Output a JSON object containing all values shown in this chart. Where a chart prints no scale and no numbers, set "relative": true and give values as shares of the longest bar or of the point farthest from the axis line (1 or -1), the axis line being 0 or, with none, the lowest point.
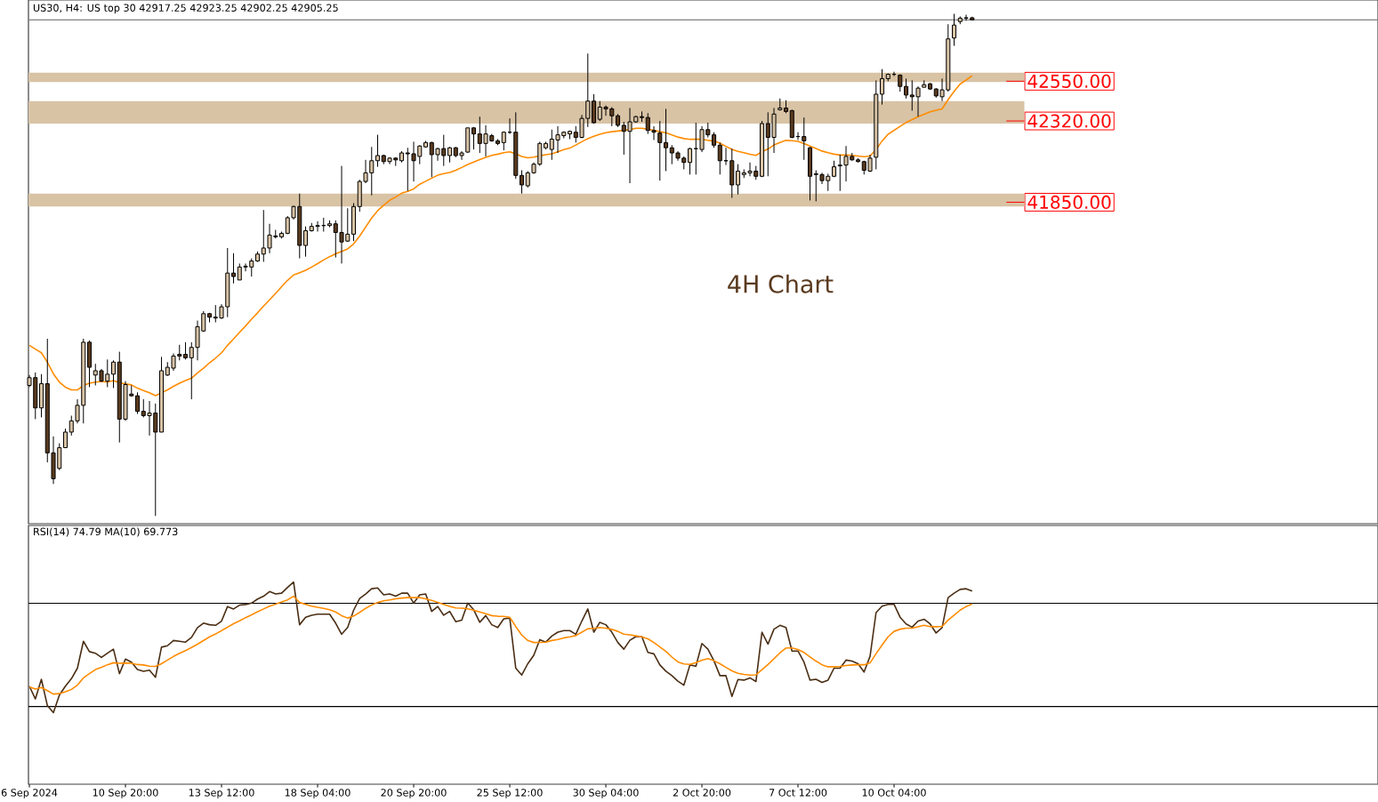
{
  "chart_data": [
    {
      "type": "candlestick",
      "title": "US30, H4: US top 30 42917.25 42923.25 42902.25 42905.25",
      "annotations": [
        "4H Chart"
      ],
      "tick_labels": "y",
      "yticks": [
        {
          "value": 42550,
          "label": "42550.00"
        },
        {
          "value": 42320,
          "label": "42320.00"
        },
        {
          "value": 41850,
          "label": "41850.00"
        }
      ],
      "ylim": [
        39990,
        43020
      ],
      "ohlc": [
        [
          40790,
          40850,
          40780,
          40835
        ],
        [
          40835,
          40865,
          40595,
          40660
        ],
        [
          40660,
          40855,
          40605,
          40800
        ],
        [
          40800,
          41060,
          40345,
          40400
        ],
        [
          40400,
          40495,
          40220,
          40250
        ],
        [
          40310,
          40455,
          40300,
          40430
        ],
        [
          40430,
          40540,
          40430,
          40520
        ],
        [
          40520,
          40615,
          40500,
          40585
        ],
        [
          40585,
          40710,
          40570,
          40675
        ],
        [
          40675,
          41060,
          40570,
          41040
        ],
        [
          41040,
          41050,
          40780,
          40895
        ],
        [
          40850,
          40915,
          40790,
          40875
        ],
        [
          40875,
          40885,
          40810,
          40815
        ],
        [
          40815,
          40940,
          40780,
          40855
        ],
        [
          40855,
          40935,
          40775,
          40925
        ],
        [
          40925,
          40985,
          40460,
          40595
        ],
        [
          40595,
          40815,
          40585,
          40795
        ],
        [
          40740,
          40790,
          40725,
          40730
        ],
        [
          40730,
          40750,
          40625,
          40640
        ],
        [
          40640,
          40710,
          40605,
          40615
        ],
        [
          40615,
          40700,
          40500,
          40630
        ],
        [
          40630,
          40685,
          40035,
          40520
        ],
        [
          40520,
          40955,
          40520,
          40875
        ],
        [
          40850,
          40925,
          40845,
          40895
        ],
        [
          40890,
          40975,
          40875,
          40960
        ],
        [
          40970,
          41025,
          40935,
          40960
        ],
        [
          40970,
          41040,
          40940,
          40950
        ],
        [
          40950,
          41040,
          40710,
          41010
        ],
        [
          41010,
          41165,
          40935,
          41130
        ],
        [
          41105,
          41220,
          41100,
          41205
        ],
        [
          41205,
          41210,
          41155,
          41185
        ],
        [
          41185,
          41255,
          41155,
          41180
        ],
        [
          41180,
          41260,
          41175,
          41245
        ],
        [
          41245,
          41585,
          41185,
          41440
        ],
        [
          41440,
          41555,
          41380,
          41420
        ],
        [
          41400,
          41495,
          41400,
          41475
        ],
        [
          41475,
          41495,
          41450,
          41480
        ],
        [
          41475,
          41525,
          41420,
          41510
        ],
        [
          41510,
          41565,
          41505,
          41550
        ],
        [
          41550,
          41805,
          41505,
          41585
        ],
        [
          41585,
          41725,
          41555,
          41660
        ],
        [
          41655,
          41690,
          41640,
          41650
        ],
        [
          41650,
          41680,
          41640,
          41670
        ],
        [
          41670,
          41770,
          41665,
          41760
        ],
        [
          41760,
          41830,
          41750,
          41825
        ],
        [
          41825,
          41900,
          41525,
          41600
        ],
        [
          41600,
          41710,
          41535,
          41685
        ],
        [
          41685,
          41730,
          41680,
          41710
        ],
        [
          41710,
          41740,
          41680,
          41715
        ],
        [
          41715,
          41760,
          41680,
          41715
        ],
        [
          41715,
          41745,
          41705,
          41725
        ],
        [
          41725,
          41745,
          41530,
          41675
        ],
        [
          41675,
          42060,
          41495,
          41620
        ],
        [
          41625,
          41815,
          41620,
          41665
        ],
        [
          41665,
          41845,
          41625,
          41825
        ],
        [
          41825,
          41980,
          41795,
          41970
        ],
        [
          41970,
          42095,
          41960,
          42020
        ],
        [
          42020,
          42170,
          41890,
          42090
        ],
        [
          42090,
          42240,
          42055,
          42120
        ],
        [
          42120,
          42125,
          42070,
          42085
        ],
        [
          42085,
          42110,
          42070,
          42105
        ],
        [
          42105,
          42110,
          42060,
          42095
        ],
        [
          42090,
          42145,
          42080,
          42135
        ],
        [
          42135,
          42165,
          41915,
          42130
        ],
        [
          42130,
          42200,
          41970,
          42090
        ],
        [
          42115,
          42180,
          42070,
          42175
        ],
        [
          42170,
          42205,
          42165,
          42195
        ],
        [
          42195,
          42200,
          41995,
          42125
        ],
        [
          42125,
          42165,
          42090,
          42160
        ],
        [
          42160,
          42240,
          42060,
          42120
        ],
        [
          42120,
          42170,
          42080,
          42165
        ],
        [
          42165,
          42170,
          42110,
          42120
        ],
        [
          42120,
          42145,
          42095,
          42135
        ],
        [
          42140,
          42280,
          42135,
          42280
        ],
        [
          42280,
          42285,
          42155,
          42245
        ],
        [
          42245,
          42345,
          42135,
          42190
        ],
        [
          42190,
          42295,
          42115,
          42245
        ],
        [
          42235,
          42245,
          42200,
          42205
        ],
        [
          42205,
          42215,
          42180,
          42190
        ],
        [
          42195,
          42260,
          42150,
          42255
        ],
        [
          42255,
          42335,
          42245,
          42255
        ],
        [
          42255,
          42370,
          41985,
          42005
        ],
        [
          42005,
          42035,
          41900,
          41950
        ],
        [
          41945,
          42030,
          41935,
          42020
        ],
        [
          42020,
          42080,
          42015,
          42070
        ],
        [
          42070,
          42200,
          42060,
          42190
        ],
        [
          42165,
          42200,
          42155,
          42190
        ],
        [
          42155,
          42270,
          42095,
          42215
        ],
        [
          42210,
          42290,
          42135,
          42240
        ],
        [
          42235,
          42260,
          42220,
          42255
        ],
        [
          42245,
          42265,
          42215,
          42260
        ],
        [
          42255,
          42290,
          42195,
          42225
        ],
        [
          42225,
          42355,
          42220,
          42335
        ],
        [
          42335,
          42710,
          42285,
          42435
        ],
        [
          42435,
          42475,
          42305,
          42310
        ],
        [
          42330,
          42435,
          42320,
          42400
        ],
        [
          42400,
          42410,
          42350,
          42390
        ],
        [
          42390,
          42400,
          42290,
          42350
        ],
        [
          42350,
          42360,
          42285,
          42295
        ],
        [
          42295,
          42315,
          42125,
          42260
        ],
        [
          42260,
          42395,
          41960,
          42315
        ],
        [
          42315,
          42350,
          42310,
          42345
        ],
        [
          42345,
          42375,
          42315,
          42340
        ],
        [
          42340,
          42365,
          42245,
          42265
        ],
        [
          42265,
          42290,
          42210,
          42255
        ],
        [
          42250,
          42320,
          41975,
          42195
        ],
        [
          42195,
          42390,
          42030,
          42165
        ],
        [
          42165,
          42180,
          42070,
          42135
        ],
        [
          42135,
          42145,
          42090,
          42105
        ],
        [
          42105,
          42115,
          42040,
          42080
        ],
        [
          42080,
          42165,
          42010,
          42160
        ],
        [
          42160,
          42310,
          42010,
          42160
        ],
        [
          42155,
          42290,
          42140,
          42270
        ],
        [
          42270,
          42310,
          42225,
          42240
        ],
        [
          42240,
          42255,
          42165,
          42180
        ],
        [
          42180,
          42195,
          42010,
          42090
        ],
        [
          42090,
          42165,
          42065,
          42090
        ],
        [
          42090,
          42160,
          41875,
          41950
        ],
        [
          41950,
          42070,
          41895,
          42030
        ],
        [
          42010,
          42040,
          41990,
          42020
        ],
        [
          42020,
          42080,
          42000,
          42030
        ],
        [
          42030,
          42060,
          41980,
          42000
        ],
        [
          42000,
          42320,
          41995,
          42305
        ],
        [
          42305,
          42370,
          42000,
          42225
        ],
        [
          42225,
          42395,
          42135,
          42360
        ],
        [
          42385,
          42450,
          42380,
          42395
        ],
        [
          42395,
          42440,
          42365,
          42375
        ],
        [
          42380,
          42385,
          42220,
          42225
        ],
        [
          42230,
          42255,
          42210,
          42230
        ],
        [
          42230,
          42340,
          42095,
          42205
        ],
        [
          42165,
          42170,
          41860,
          42000
        ],
        [
          42010,
          42035,
          41855,
          42015
        ],
        [
          42010,
          42020,
          41955,
          41975
        ],
        [
          41975,
          42015,
          41915,
          42000
        ],
        [
          42000,
          42090,
          41995,
          42055
        ],
        [
          42060,
          42125,
          41915,
          42065
        ],
        [
          42065,
          42175,
          41970,
          42115
        ],
        [
          42115,
          42135,
          42090,
          42095
        ],
        [
          42095,
          42105,
          42080,
          42085
        ],
        [
          42085,
          42090,
          42010,
          42035
        ],
        [
          42030,
          42125,
          42025,
          42105
        ],
        [
          42110,
          42555,
          42040,
          42475
        ],
        [
          42475,
          42620,
          42415,
          42565
        ],
        [
          42565,
          42595,
          42550,
          42590
        ],
        [
          42590,
          42605,
          42580,
          42590
        ],
        [
          42585,
          42590,
          42490,
          42520
        ],
        [
          42520,
          42565,
          42450,
          42470
        ],
        [
          42470,
          42555,
          42380,
          42460
        ],
        [
          42460,
          42520,
          42345,
          42510
        ],
        [
          42515,
          42555,
          42515,
          42530
        ],
        [
          42535,
          42540,
          42500,
          42505
        ],
        [
          42505,
          42510,
          42455,
          42465
        ],
        [
          42460,
          42565,
          42435,
          42500
        ],
        [
          42500,
          42880,
          42490,
          42795
        ],
        [
          42800,
          42940,
          42755,
          42875
        ],
        [
          42895,
          42925,
          42880,
          42915
        ],
        [
          42915,
          42935,
          42900,
          42917.25
        ],
        [
          42917.25,
          42923.25,
          42902.25,
          42905.25
        ]
      ],
      "series": [
        {
          "type": "line",
          "color": "#ff8c00",
          "values": [
            41022,
            41000,
            40979,
            40925,
            40857,
            40809,
            40780,
            40764,
            40764,
            40790,
            40803,
            40809,
            40813,
            40809,
            40818,
            40805,
            40799,
            40793,
            40774,
            40760,
            40747,
            40731,
            40747,
            40764,
            40785,
            40803,
            40818,
            40832,
            40863,
            40890,
            40921,
            40948,
            40979,
            41022,
            41059,
            41097,
            41134,
            41173,
            41210,
            41249,
            41285,
            41322,
            41361,
            41398,
            41429,
            41442,
            41456,
            41475,
            41495,
            41516,
            41535,
            41551,
            41565,
            41580,
            41609,
            41654,
            41706,
            41758,
            41801,
            41832,
            41861,
            41880,
            41902,
            41913,
            41927,
            41954,
            41971,
            41989,
            42006,
            42016,
            42022,
            42035,
            42051,
            42068,
            42082,
            42096,
            42109,
            42121,
            42128,
            42136,
            42142,
            42130,
            42115,
            42107,
            42111,
            42119,
            42125,
            42130,
            42142,
            42154,
            42163,
            42181,
            42200,
            42218,
            42231,
            42243,
            42252,
            42258,
            42262,
            42266,
            42270,
            42278,
            42278,
            42272,
            42266,
            42258,
            42252,
            42239,
            42227,
            42218,
            42214,
            42214,
            42214,
            42208,
            42204,
            42192,
            42173,
            42156,
            42144,
            42136,
            42127,
            42121,
            42142,
            42158,
            42181,
            42196,
            42208,
            42206,
            42202,
            42189,
            42175,
            42161,
            42146,
            42136,
            42128,
            42123,
            42123,
            42121,
            42117,
            42113,
            42117,
            42156,
            42204,
            42243,
            42266,
            42289,
            42311,
            42328,
            42345,
            42359,
            42373,
            42382,
            42390,
            42444,
            42491,
            42534,
            42557,
            42582
          ]
        }
      ],
      "bands": [
        {
          "axis": "y",
          "from": 42545,
          "to": 42600,
          "color": "#d8c3a5"
        },
        {
          "axis": "y",
          "from": 42305,
          "to": 42435,
          "color": "#d8c3a5"
        },
        {
          "axis": "y",
          "from": 41825,
          "to": 41900,
          "color": "#d8c3a5"
        }
      ],
      "ref_lines": [
        {
          "axis": "y",
          "value": 42905.25,
          "color": "#808080"
        }
      ]
    },
    {
      "type": "line",
      "title": "RSI(14) 74.79 MA(10) 69.773",
      "tick_labels": "x",
      "categories": [
        "6 Sep 2024",
        null,
        null,
        null,
        null,
        null,
        null,
        null,
        null,
        null,
        null,
        null,
        null,
        null,
        null,
        null,
        "10 Sep 20:00",
        null,
        null,
        null,
        null,
        null,
        null,
        null,
        null,
        null,
        null,
        null,
        null,
        null,
        null,
        null,
        "13 Sep 12:00",
        null,
        null,
        null,
        null,
        null,
        null,
        null,
        null,
        null,
        null,
        null,
        null,
        null,
        null,
        null,
        "18 Sep 04:00",
        null,
        null,
        null,
        null,
        null,
        null,
        null,
        null,
        null,
        null,
        null,
        null,
        null,
        null,
        null,
        "20 Sep 20:00",
        null,
        null,
        null,
        null,
        null,
        null,
        null,
        null,
        null,
        null,
        null,
        null,
        null,
        null,
        null,
        "25 Sep 12:00",
        null,
        null,
        null,
        null,
        null,
        null,
        null,
        null,
        null,
        null,
        null,
        null,
        null,
        null,
        null,
        "30 Sep 04:00",
        null,
        null,
        null,
        null,
        null,
        null,
        null,
        null,
        null,
        null,
        null,
        null,
        null,
        null,
        null,
        "2 Oct 20:00",
        null,
        null,
        null,
        null,
        null,
        null,
        null,
        null,
        null,
        null,
        null,
        null,
        null,
        null,
        null,
        "7 Oct 12:00",
        null,
        null,
        null,
        null,
        null,
        null,
        null,
        null,
        null,
        null,
        null,
        null,
        null,
        null,
        null,
        "10 Oct 04:00",
        null,
        null,
        null,
        null,
        null,
        null,
        null,
        null,
        null,
        null,
        null,
        null,
        null
      ],
      "relative": true,
      "series": [
        {
          "color": "#4a2e14",
          "values": [
            0.485,
            0.422,
            0.519,
            0.389,
            0.354,
            0.441,
            0.485,
            0.522,
            0.574,
            0.707,
            0.656,
            0.648,
            0.627,
            0.648,
            0.668,
            0.547,
            0.619,
            0.604,
            0.567,
            0.559,
            0.564,
            0.529,
            0.678,
            0.685,
            0.711,
            0.707,
            0.703,
            0.726,
            0.775,
            0.797,
            0.789,
            0.786,
            0.807,
            0.879,
            0.867,
            0.886,
            0.889,
            0.896,
            0.916,
            0.93,
            0.953,
            0.941,
            0.945,
            0.974,
            1,
            0.789,
            0.826,
            0.836,
            0.841,
            0.841,
            0.841,
            0.797,
            0.742,
            0.775,
            0.861,
            0.919,
            0.941,
            0.967,
            0.971,
            0.937,
            0.941,
            0.93,
            0.945,
            0.945,
            0.896,
            0.937,
            0.941,
            0.855,
            0.879,
            0.836,
            0.855,
            0.804,
            0.812,
            0.896,
            0.863,
            0.801,
            0.834,
            0.789,
            0.775,
            0.818,
            0.822,
            0.574,
            0.54,
            0.596,
            0.638,
            0.715,
            0.703,
            0.733,
            0.752,
            0.76,
            0.76,
            0.742,
            0.807,
            0.867,
            0.752,
            0.801,
            0.789,
            0.752,
            0.701,
            0.668,
            0.712,
            0.73,
            0.73,
            0.652,
            0.645,
            0.59,
            0.559,
            0.537,
            0.51,
            0.49,
            0.59,
            0.584,
            0.696,
            0.668,
            0.611,
            0.537,
            0.537,
            0.434,
            0.518,
            0.515,
            0.526,
            0.508,
            0.752,
            0.693,
            0.767,
            0.786,
            0.775,
            0.659,
            0.659,
            0.604,
            0.515,
            0.519,
            0.504,
            0.515,
            0.574,
            0.574,
            0.614,
            0.609,
            0.596,
            0.555,
            0.633,
            0.849,
            0.881,
            0.89,
            0.89,
            0.826,
            0.793,
            0.777,
            0.807,
            0.816,
            0.793,
            0.748,
            0.775,
            0.923,
            0.945,
            0.964,
            0.967,
            0.956
          ]
        },
        {
          "color": "#ff8c00",
          "values": [
            0.482,
            0.471,
            0.478,
            0.463,
            0.446,
            0.448,
            0.457,
            0.469,
            0.49,
            0.526,
            0.547,
            0.567,
            0.578,
            0.591,
            0.601,
            0.598,
            0.6,
            0.598,
            0.592,
            0.59,
            0.584,
            0.583,
            0.596,
            0.614,
            0.632,
            0.648,
            0.661,
            0.676,
            0.693,
            0.711,
            0.729,
            0.743,
            0.76,
            0.777,
            0.794,
            0.808,
            0.824,
            0.838,
            0.853,
            0.867,
            0.881,
            0.891,
            0.902,
            0.912,
            0.93,
            0.899,
            0.89,
            0.881,
            0.875,
            0.87,
            0.863,
            0.852,
            0.834,
            0.822,
            0.832,
            0.85,
            0.87,
            0.887,
            0.899,
            0.907,
            0.912,
            0.917,
            0.921,
            0.923,
            0.923,
            0.923,
            0.917,
            0.909,
            0.9,
            0.89,
            0.88,
            0.872,
            0.871,
            0.868,
            0.861,
            0.852,
            0.843,
            0.834,
            0.831,
            0.83,
            0.826,
            0.78,
            0.738,
            0.711,
            0.701,
            0.702,
            0.703,
            0.711,
            0.716,
            0.724,
            0.729,
            0.735,
            0.752,
            0.769,
            0.771,
            0.775,
            0.772,
            0.766,
            0.756,
            0.742,
            0.739,
            0.734,
            0.729,
            0.719,
            0.701,
            0.679,
            0.657,
            0.629,
            0.605,
            0.595,
            0.593,
            0.602,
            0.614,
            0.621,
            0.611,
            0.596,
            0.578,
            0.561,
            0.549,
            0.543,
            0.54,
            0.541,
            0.567,
            0.592,
            0.621,
            0.65,
            0.674,
            0.674,
            0.666,
            0.652,
            0.63,
            0.609,
            0.591,
            0.581,
            0.581,
            0.583,
            0.587,
            0.59,
            0.591,
            0.591,
            0.6,
            0.646,
            0.688,
            0.729,
            0.756,
            0.767,
            0.772,
            0.772,
            0.779,
            0.786,
            0.78,
            0.779,
            0.781,
            0.812,
            0.836,
            0.861,
            0.879,
            0.892
          ]
        }
      ],
      "ref_lines": [
        {
          "axis": "y",
          "value": 0.895,
          "color": "#000000"
        },
        {
          "axis": "y",
          "value": 0.384,
          "color": "#000000"
        }
      ]
    }
  ]
}
